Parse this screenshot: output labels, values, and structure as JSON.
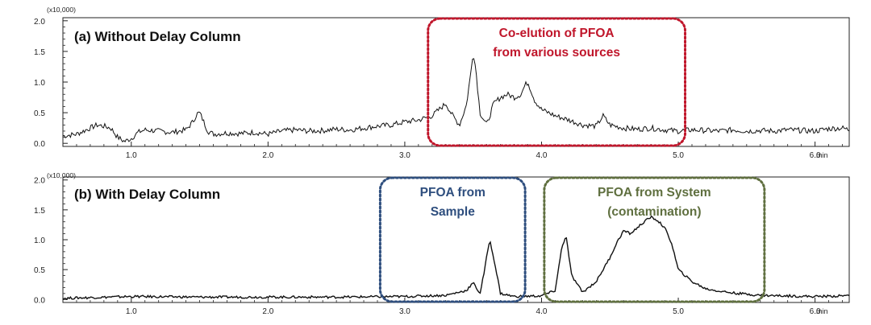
{
  "chart_data": [
    {
      "type": "line",
      "title": "(a) Without Delay Column",
      "xlabel": "min",
      "scale_label": "(x10,000)",
      "xlim": [
        0.5,
        6.25
      ],
      "ylim": [
        -0.05,
        2.05
      ],
      "x_ticks": [
        "1.0",
        "2.0",
        "3.0",
        "4.0",
        "5.0",
        "6.0"
      ],
      "y_ticks": [
        "0.0",
        "0.5",
        "1.0",
        "1.5",
        "2.0"
      ],
      "annotations": [
        {
          "lines": [
            "Co-elution of PFOA",
            "from various sources"
          ],
          "color": "#c0162b",
          "x_range": [
            3.17,
            5.05
          ],
          "y_range": [
            -0.05,
            2.05
          ]
        }
      ],
      "series": [
        {
          "name": "Without Delay Column",
          "x": [
            0.5,
            0.6,
            0.7,
            0.75,
            0.8,
            0.85,
            0.9,
            0.95,
            1.0,
            1.05,
            1.1,
            1.2,
            1.3,
            1.4,
            1.45,
            1.48,
            1.5,
            1.53,
            1.56,
            1.6,
            1.7,
            1.8,
            1.9,
            2.0,
            2.1,
            2.2,
            2.3,
            2.4,
            2.5,
            2.6,
            2.7,
            2.8,
            2.9,
            3.0,
            3.1,
            3.2,
            3.25,
            3.3,
            3.35,
            3.4,
            3.45,
            3.48,
            3.5,
            3.52,
            3.55,
            3.6,
            3.65,
            3.7,
            3.75,
            3.8,
            3.85,
            3.88,
            3.9,
            3.95,
            4.0,
            4.1,
            4.2,
            4.3,
            4.4,
            4.45,
            4.5,
            4.6,
            4.7,
            4.8,
            4.9,
            5.0,
            5.1,
            5.2,
            5.3,
            5.4,
            5.5,
            5.6,
            5.7,
            5.8,
            5.9,
            6.0,
            6.1,
            6.2,
            6.25
          ],
          "y": [
            0.12,
            0.15,
            0.25,
            0.3,
            0.28,
            0.25,
            0.1,
            0.03,
            0.08,
            0.18,
            0.22,
            0.2,
            0.18,
            0.22,
            0.35,
            0.48,
            0.5,
            0.35,
            0.2,
            0.15,
            0.17,
            0.16,
            0.18,
            0.15,
            0.2,
            0.22,
            0.2,
            0.21,
            0.23,
            0.22,
            0.25,
            0.28,
            0.3,
            0.35,
            0.38,
            0.45,
            0.55,
            0.65,
            0.45,
            0.3,
            0.62,
            1.1,
            1.5,
            1.2,
            0.5,
            0.3,
            0.65,
            0.75,
            0.8,
            0.75,
            0.8,
            0.95,
            1.0,
            0.7,
            0.55,
            0.45,
            0.38,
            0.3,
            0.28,
            0.45,
            0.3,
            0.25,
            0.23,
            0.25,
            0.22,
            0.2,
            0.22,
            0.21,
            0.2,
            0.22,
            0.2,
            0.21,
            0.2,
            0.22,
            0.21,
            0.2,
            0.24,
            0.25,
            0.22
          ]
        }
      ]
    },
    {
      "type": "line",
      "title": "(b) With Delay Column",
      "xlabel": "min",
      "scale_label": "(x10,000)",
      "xlim": [
        0.5,
        6.25
      ],
      "ylim": [
        -0.05,
        2.05
      ],
      "x_ticks": [
        "1.0",
        "2.0",
        "3.0",
        "4.0",
        "5.0",
        "6.0"
      ],
      "y_ticks": [
        "0.0",
        "0.5",
        "1.0",
        "1.5",
        "2.0"
      ],
      "annotations": [
        {
          "lines": [
            "PFOA from",
            "Sample"
          ],
          "color": "#2e4e7e",
          "x_range": [
            2.82,
            3.88
          ],
          "y_range": [
            -0.05,
            2.05
          ]
        },
        {
          "lines": [
            "PFOA from System",
            "(contamination)"
          ],
          "color": "#5f6f3f",
          "x_range": [
            4.02,
            5.63
          ],
          "y_range": [
            -0.05,
            2.05
          ]
        }
      ],
      "series": [
        {
          "name": "With Delay Column",
          "x": [
            0.5,
            1.0,
            1.5,
            2.0,
            2.5,
            3.0,
            3.3,
            3.45,
            3.5,
            3.55,
            3.58,
            3.62,
            3.65,
            3.7,
            3.8,
            4.0,
            4.1,
            4.15,
            4.18,
            4.22,
            4.3,
            4.4,
            4.5,
            4.55,
            4.6,
            4.65,
            4.7,
            4.75,
            4.8,
            4.85,
            4.9,
            4.95,
            5.0,
            5.05,
            5.1,
            5.2,
            5.3,
            5.4,
            5.5,
            5.6,
            5.8,
            6.0,
            6.2,
            6.25
          ],
          "y": [
            0.02,
            0.05,
            0.04,
            0.04,
            0.04,
            0.05,
            0.07,
            0.15,
            0.28,
            0.1,
            0.45,
            1.0,
            0.7,
            0.1,
            0.05,
            0.06,
            0.15,
            0.9,
            1.05,
            0.4,
            0.12,
            0.3,
            0.7,
            0.95,
            1.15,
            1.1,
            1.2,
            1.3,
            1.38,
            1.32,
            1.2,
            0.95,
            0.5,
            0.4,
            0.3,
            0.18,
            0.14,
            0.11,
            0.09,
            0.07,
            0.06,
            0.05,
            0.06,
            0.07
          ]
        }
      ]
    }
  ]
}
